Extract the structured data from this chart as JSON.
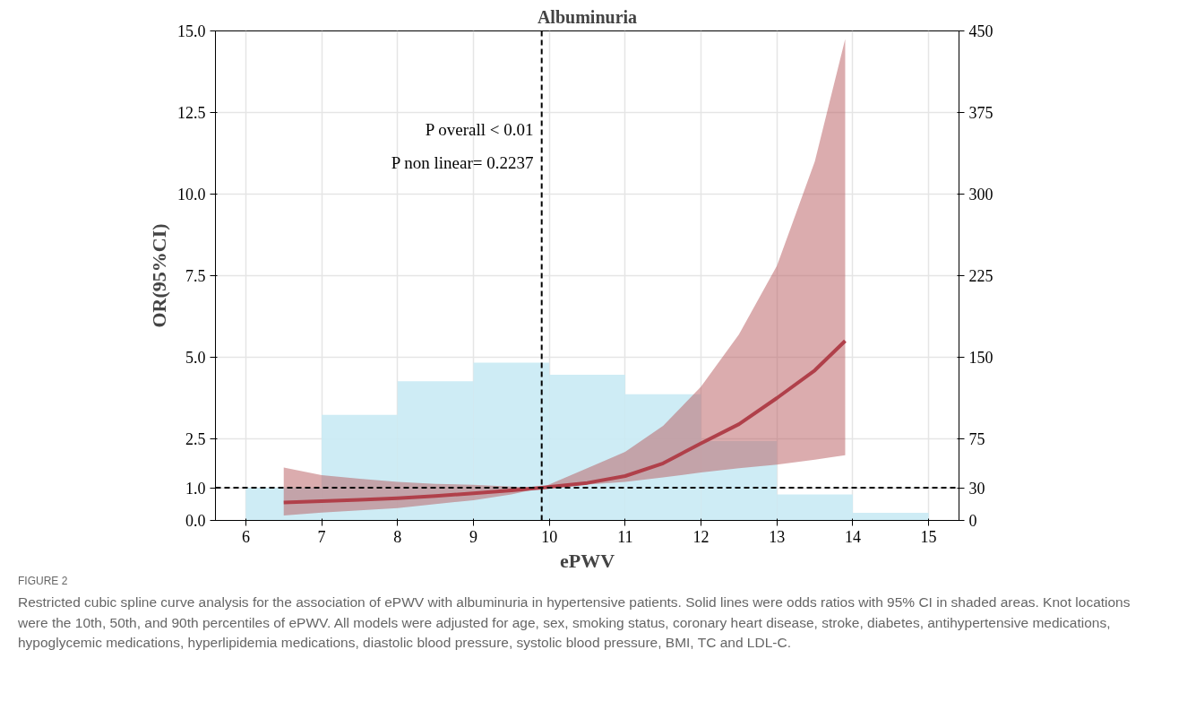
{
  "chart_data": {
    "type": "line",
    "title": "Albuminuria",
    "xlabel": "ePWV",
    "ylabel": "OR(95%CI)",
    "xlim": [
      5.6,
      15.4
    ],
    "xticks": [
      6,
      7,
      8,
      9,
      10,
      11,
      12,
      13,
      14,
      15
    ],
    "ylim": [
      0,
      15
    ],
    "yticks": [
      {
        "value": 0,
        "label": "0.0"
      },
      {
        "value": 1,
        "label": "1.0"
      },
      {
        "value": 2.5,
        "label": "2.5"
      },
      {
        "value": 5,
        "label": "5.0"
      },
      {
        "value": 7.5,
        "label": "7.5"
      },
      {
        "value": 10,
        "label": "10.0"
      },
      {
        "value": 12.5,
        "label": "12.5"
      },
      {
        "value": 15,
        "label": "15.0"
      }
    ],
    "y2lim": [
      0,
      450
    ],
    "y2ticks": [
      0,
      30,
      75,
      150,
      225,
      300,
      375,
      450
    ],
    "grid": true,
    "series": [
      {
        "type": "histogram",
        "axis": "y2",
        "color": "#c9eaf4",
        "bins": [
          6,
          7,
          8,
          9,
          10,
          11,
          12,
          13,
          14,
          15
        ],
        "values": [
          30,
          97,
          128,
          145,
          134,
          116,
          73,
          24,
          7
        ]
      },
      {
        "color": "#b0404a",
        "x": [
          6.5,
          7,
          7.5,
          8,
          8.5,
          9,
          9.5,
          9.9,
          10.5,
          11,
          11.5,
          12,
          12.5,
          13,
          13.5,
          13.9
        ],
        "values": [
          0.55,
          0.59,
          0.63,
          0.68,
          0.75,
          0.83,
          0.92,
          1.0,
          1.15,
          1.36,
          1.75,
          2.36,
          2.95,
          3.75,
          4.6,
          5.5
        ],
        "lower": [
          0.15,
          0.24,
          0.31,
          0.38,
          0.5,
          0.62,
          0.8,
          1.0,
          1.1,
          1.18,
          1.32,
          1.47,
          1.6,
          1.71,
          1.86,
          2.0
        ],
        "upper": [
          1.62,
          1.39,
          1.28,
          1.18,
          1.12,
          1.09,
          1.04,
          1.0,
          1.6,
          2.1,
          2.9,
          4.1,
          5.7,
          7.8,
          11.0,
          14.75
        ]
      }
    ],
    "ref_lines": [
      {
        "axis": "x",
        "value": 9.9,
        "color": "#000000",
        "line_style": "dashed"
      },
      {
        "axis": "y",
        "value": 1.0,
        "color": "#000000",
        "line_style": "dashed"
      }
    ],
    "annotations": [
      "P overall < 0.01",
      "P non linear= 0.2237",
      "FIGURE 2",
      "Restricted cubic spline curve analysis for the association of ePWV with albuminuria in hypertensive patients. Solid lines were odds ratios with 95% CI in shaded areas. Knot locations were the 10th, 50th, and 90th percentiles of ePWV. All models were adjusted for age, sex, smoking status, coronary heart disease, stroke, diabetes, antihypertensive medications, hypoglycemic medications, hyperlipidemia medications, diastolic blood pressure, systolic blood pressure, BMI, TC and LDL-C."
    ]
  }
}
